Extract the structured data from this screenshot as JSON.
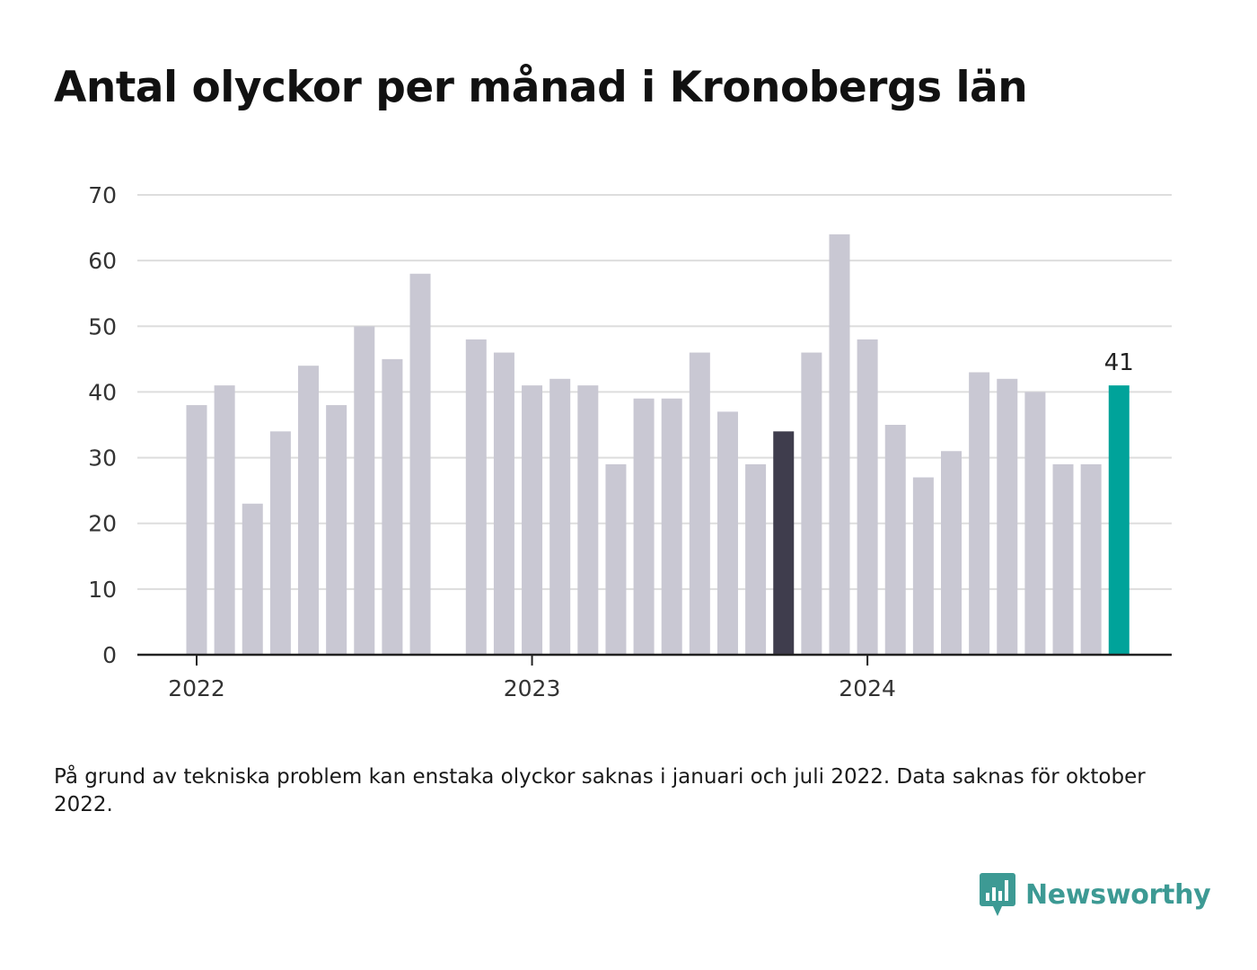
{
  "title": "Antal olyckor per månad i Kronobergs län",
  "footnote": "På grund av tekniska problem kan enstaka olyckor saknas i januari och juli 2022. Data saknas för oktober 2022.",
  "brand": {
    "name": "Newsworthy",
    "logo_icon": "newsworthy-bar-chart-logo",
    "color": "#3d9a94"
  },
  "colors": {
    "default_bar": "#c9c8d3",
    "highlight_dark": "#3f3d4d",
    "highlight_latest": "#00a39a",
    "gridline": "#dddddd",
    "axis": "#222222"
  },
  "chart_data": {
    "type": "bar",
    "title": "Antal olyckor per månad i Kronobergs län",
    "xlabel": "",
    "ylabel": "",
    "ylim": [
      0,
      70
    ],
    "yticks": [
      0,
      10,
      20,
      30,
      40,
      50,
      60,
      70
    ],
    "grid": true,
    "x_ticks": [
      {
        "label": "2022",
        "month": "2022-01"
      },
      {
        "label": "2023",
        "month": "2023-01"
      },
      {
        "label": "2024",
        "month": "2024-01"
      }
    ],
    "months": [
      "2022-01",
      "2022-02",
      "2022-03",
      "2022-04",
      "2022-05",
      "2022-06",
      "2022-07",
      "2022-08",
      "2022-09",
      "2022-10",
      "2022-11",
      "2022-12",
      "2023-01",
      "2023-02",
      "2023-03",
      "2023-04",
      "2023-05",
      "2023-06",
      "2023-07",
      "2023-08",
      "2023-09",
      "2023-10",
      "2023-11",
      "2023-12",
      "2024-01",
      "2024-02",
      "2024-03",
      "2024-04",
      "2024-05",
      "2024-06",
      "2024-07",
      "2024-08",
      "2024-09",
      "2024-10"
    ],
    "values": [
      38,
      41,
      23,
      34,
      44,
      38,
      50,
      45,
      58,
      null,
      48,
      46,
      41,
      42,
      41,
      29,
      39,
      39,
      46,
      37,
      29,
      34,
      46,
      64,
      48,
      35,
      27,
      31,
      43,
      42,
      40,
      29,
      29,
      41
    ],
    "highlights": [
      {
        "month": "2023-10",
        "style": "highlight_dark"
      },
      {
        "month": "2024-10",
        "style": "highlight_latest",
        "data_label": "41"
      }
    ]
  }
}
